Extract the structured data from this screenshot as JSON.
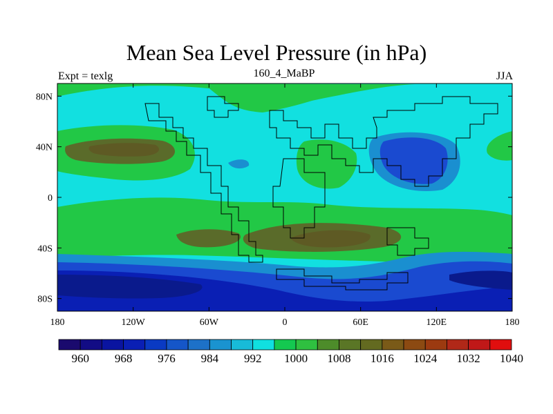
{
  "title": "Mean Sea Level Pressure (in hPa)",
  "subtitle_left": "Expt = texlg",
  "subtitle_center": "160_4_MaBP",
  "subtitle_right": "JJA",
  "lat_ticks": [
    "80N",
    "40N",
    "0",
    "40S",
    "80S"
  ],
  "lat_values": [
    80,
    40,
    0,
    -40,
    -80
  ],
  "lon_ticks": [
    "180",
    "120W",
    "60W",
    "0",
    "60E",
    "120E",
    "180"
  ],
  "lon_values": [
    -180,
    -120,
    -60,
    0,
    60,
    120,
    180
  ],
  "colorbar": {
    "labels": [
      "960",
      "968",
      "976",
      "984",
      "992",
      "1000",
      "1008",
      "1016",
      "1024",
      "1032",
      "1040"
    ],
    "colors": [
      "#1a0a6e",
      "#120c85",
      "#0a14a0",
      "#0a1fb4",
      "#0a3ac3",
      "#1556c8",
      "#1d71c8",
      "#1a93d0",
      "#18bbd8",
      "#10e0e0",
      "#14c850",
      "#2fc040",
      "#4d8c2a",
      "#5a7626",
      "#636a20",
      "#7a5a18",
      "#8c4a12",
      "#9c3a10",
      "#b02818",
      "#c01818",
      "#e00e0e"
    ],
    "label_slots": [
      1,
      3,
      5,
      7,
      9,
      11,
      13,
      15,
      17,
      19,
      21
    ]
  },
  "colors": {
    "deep_low": "#0a1a8c",
    "low": "#1a4ad0",
    "mid_low": "#1a8fd0",
    "cyan": "#12e0e0",
    "green": "#22c846",
    "olive": "#5a6b2a",
    "olive_dark": "#5e5a24"
  }
}
